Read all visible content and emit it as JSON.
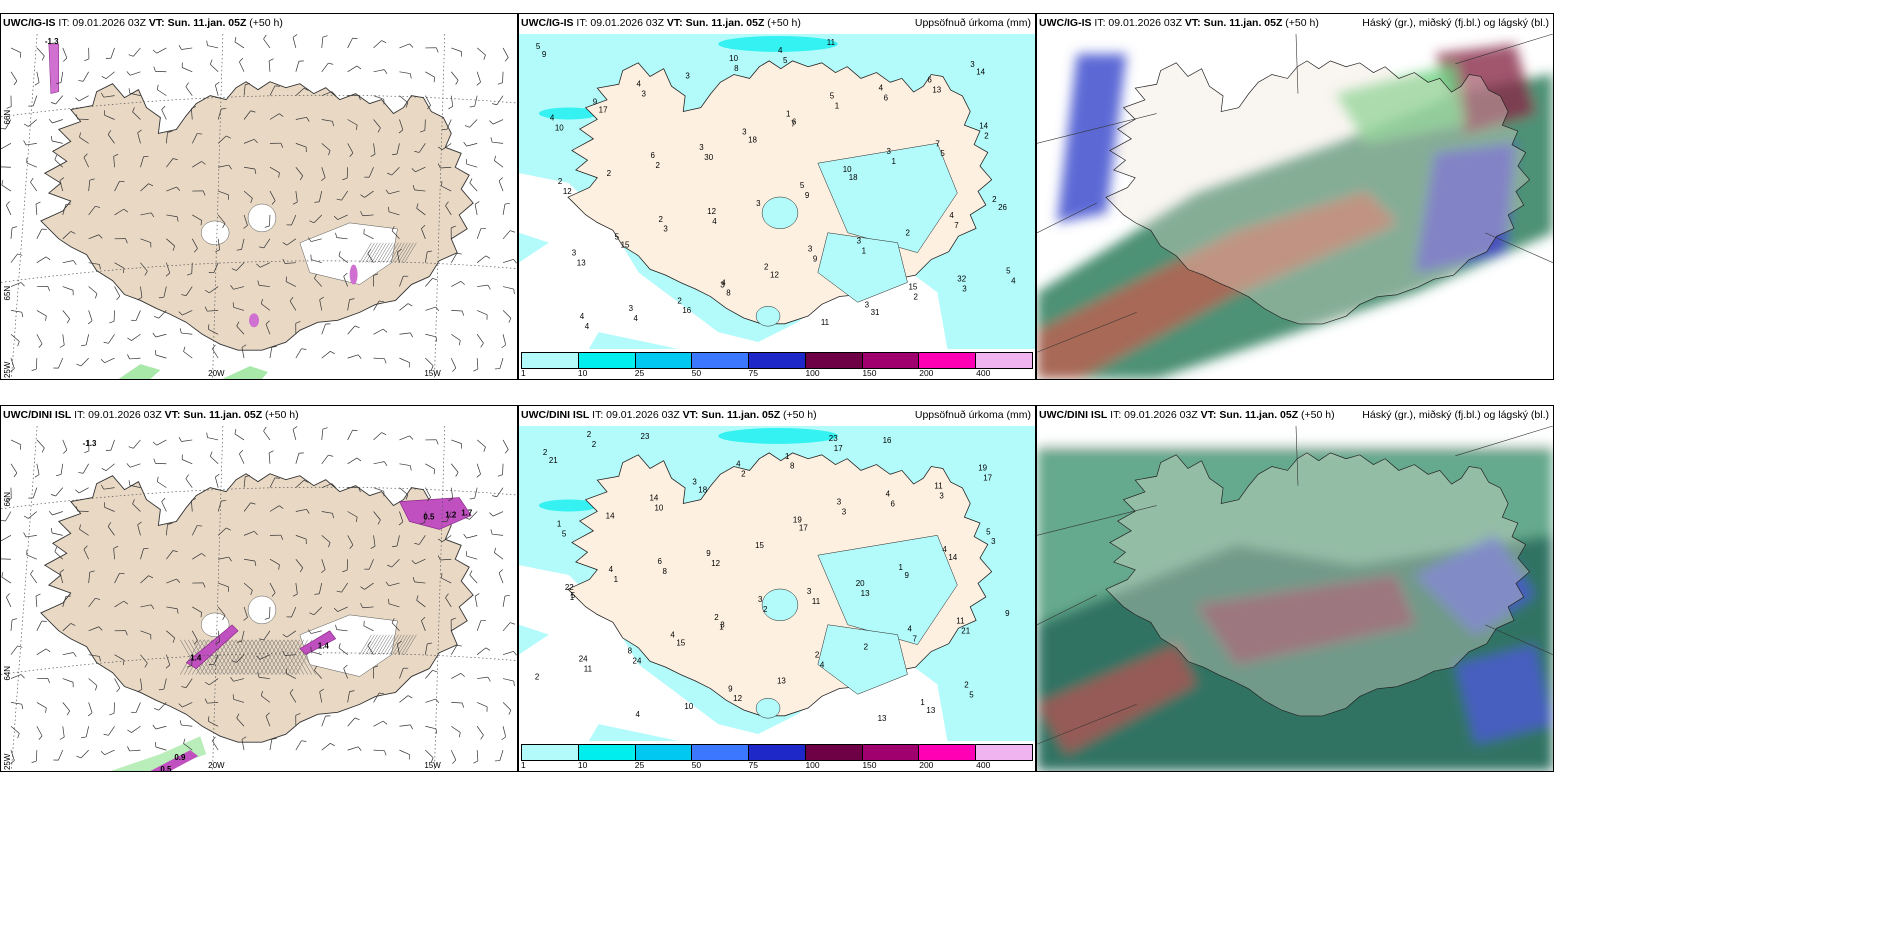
{
  "rows": [
    {
      "model": "UWC/IG-IS",
      "it": "IT: 09.01.2026 03Z",
      "vt_label": "VT:",
      "vt": "Sun. 11.jan. 05Z",
      "lead": "(+50 h)"
    },
    {
      "model": "UWC/DINI ISL",
      "it": "IT: 09.01.2026 03Z",
      "vt_label": "VT:",
      "vt": "Sun. 11.jan. 05Z",
      "lead": "(+50 h)"
    }
  ],
  "precip_title": "Uppsöfnuð úrkoma (mm)",
  "cloud_title": "Háský (gr.), miðský (fj.bl.) og lágský (bl.)",
  "colorbar": {
    "colors": [
      "#b3fafa",
      "#00eeee",
      "#00c8f0",
      "#3c78ff",
      "#1e28c8",
      "#6e0046",
      "#a0006e",
      "#ff00b4",
      "#f0b4f0"
    ],
    "labels": [
      "1",
      "10",
      "25",
      "50",
      "75",
      "100",
      "150",
      "200",
      "400"
    ]
  },
  "graticule": {
    "lat_66": "66N",
    "lat_65": "65N",
    "lat_64": "64N",
    "lon_25": "25W",
    "lon_20": "20W",
    "lon_15": "15W"
  },
  "wind_top": {
    "value_labels": [
      "-1.3"
    ]
  },
  "wind_bottom": {
    "value_labels": [
      "-1.3",
      "0.5",
      "1.4",
      "1.2",
      "1.4",
      "1.7",
      "0.5",
      "0.9"
    ]
  },
  "precip_top_numbers": [
    "6",
    "9",
    "12",
    "26",
    "18",
    "14",
    "8",
    "7",
    "30",
    "13",
    "16",
    "31",
    "15",
    "18",
    "17",
    "11",
    "13",
    "9",
    "10",
    "5",
    "4",
    "4",
    "4",
    "3",
    "6",
    "2",
    "2",
    "2",
    "6",
    "4",
    "1",
    "3",
    "5",
    "4",
    "4",
    "5",
    "3",
    "2",
    "8",
    "3",
    "4",
    "5",
    "6",
    "4",
    "3",
    "3",
    "2",
    "1",
    "4",
    "9",
    "12",
    "7",
    "14",
    "10",
    "32",
    "12",
    "7",
    "3",
    "2",
    "3",
    "1",
    "3",
    "5",
    "4",
    "3",
    "2",
    "1",
    "5",
    "2",
    "2",
    "3",
    "3",
    "3",
    "15",
    "2",
    "3",
    "4",
    "3",
    "5",
    "10",
    "9",
    "11"
  ],
  "precip_bottom_numbers": [
    "3",
    "14",
    "18",
    "13",
    "15",
    "9",
    "10",
    "16",
    "24",
    "13",
    "5",
    "17",
    "21",
    "13",
    "9",
    "15",
    "17",
    "12",
    "21",
    "12",
    "3",
    "14",
    "13",
    "8",
    "20",
    "14",
    "17",
    "11",
    "11",
    "5",
    "8",
    "19",
    "9",
    "11",
    "9",
    "11",
    "10",
    "7",
    "8",
    "6",
    "23",
    "23",
    "24",
    "3",
    "1",
    "1",
    "2",
    "2",
    "3",
    "2",
    "5",
    "1",
    "4",
    "6",
    "4",
    "4",
    "2",
    "1",
    "3",
    "2",
    "4",
    "1",
    "3",
    "5",
    "4",
    "2",
    "2",
    "4",
    "3",
    "1",
    "4",
    "1",
    "4",
    "3",
    "2",
    "2",
    "22",
    "19",
    "2"
  ]
}
